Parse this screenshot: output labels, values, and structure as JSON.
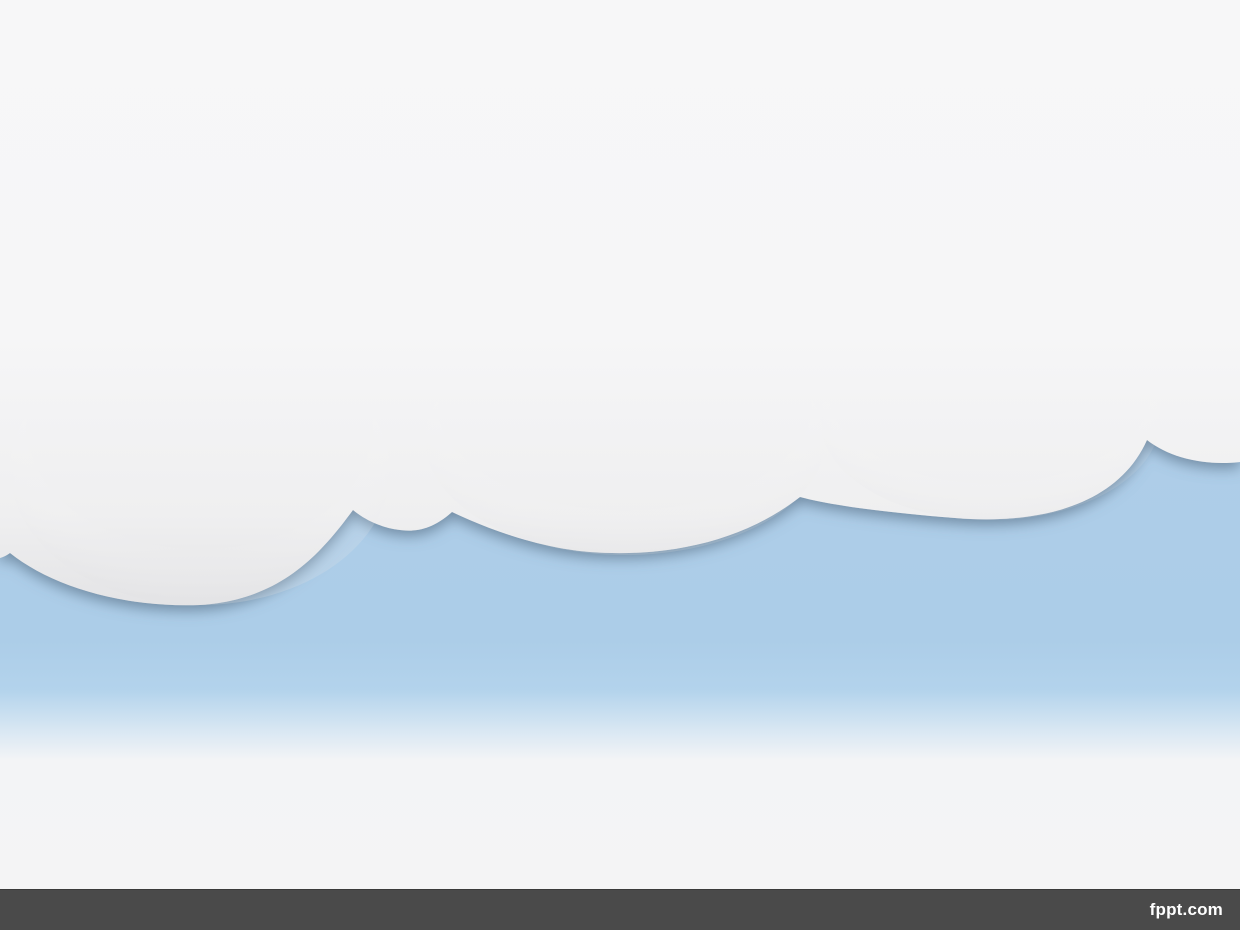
{
  "footer": {
    "brand_text": "fppt.com"
  },
  "colors": {
    "sky": "#accde8",
    "cloud": "#f7f7f8",
    "footer_bar": "#4a4a4a",
    "brand_text": "#ffffff"
  }
}
